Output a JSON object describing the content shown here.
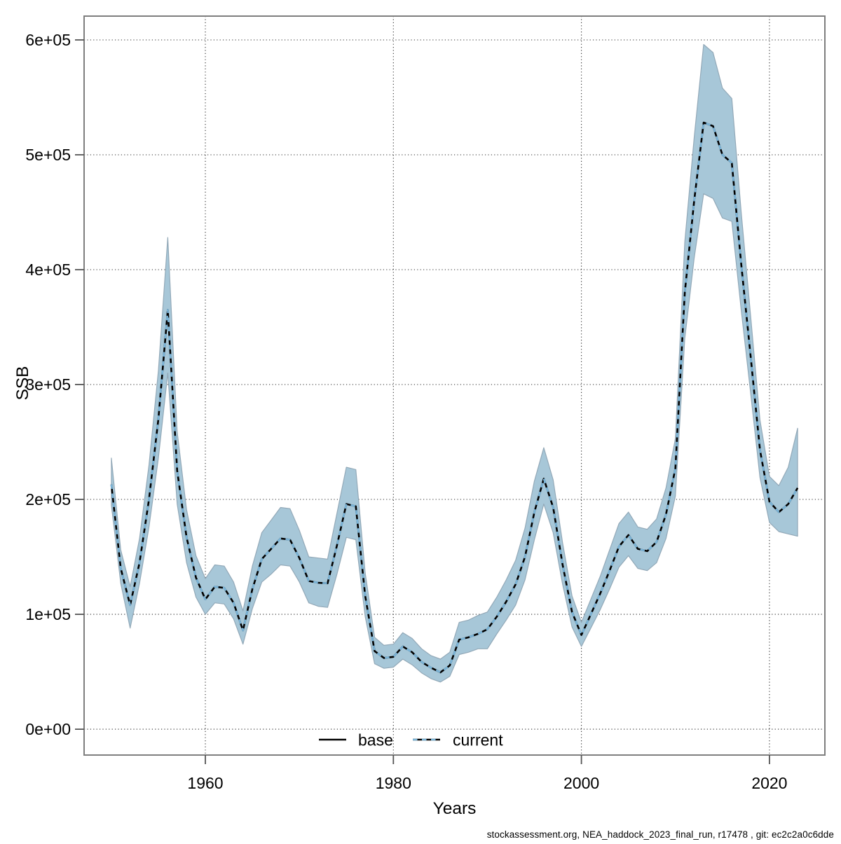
{
  "footer": "stockassessment.org, NEA_haddock_2023_final_run, r17478 , git: ec2c2a0c6dde",
  "chart_data": {
    "type": "line",
    "title": "",
    "xlabel": "Years",
    "ylabel": "SSB",
    "grid": true,
    "xlim": [
      1947.1,
      2025.9
    ],
    "ylim": [
      -22500,
      620700
    ],
    "x_ticks": [
      1960,
      1980,
      2000,
      2020
    ],
    "y_ticks": [
      {
        "value": 0,
        "label": "0e+00"
      },
      {
        "value": 100000,
        "label": "1e+05"
      },
      {
        "value": 200000,
        "label": "2e+05"
      },
      {
        "value": 300000,
        "label": "3e+05"
      },
      {
        "value": 400000,
        "label": "4e+05"
      },
      {
        "value": 500000,
        "label": "5e+05"
      },
      {
        "value": 600000,
        "label": "6e+05"
      }
    ],
    "legend": {
      "position": "bottom-center",
      "items": [
        {
          "label": "base",
          "style": "solid",
          "color": "#000000"
        },
        {
          "label": "current",
          "style": "dashed",
          "color": "#7AB4D8"
        }
      ]
    },
    "colors": {
      "ribbon_fill": "#A7C7D8",
      "ribbon_edge": "#93A9B8",
      "base_line": "#000000",
      "current_line": "#7AB4D8",
      "grid_line": "#2b2b2b",
      "frame": "#7e7e7e",
      "tick": "#555555"
    },
    "note": "base line coincides with current line (blue dashes drawn over solid black)",
    "years": [
      1950,
      1951,
      1952,
      1953,
      1954,
      1955,
      1956,
      1957,
      1958,
      1959,
      1960,
      1961,
      1962,
      1963,
      1964,
      1965,
      1966,
      1967,
      1968,
      1969,
      1970,
      1971,
      1972,
      1973,
      1974,
      1975,
      1976,
      1977,
      1978,
      1979,
      1980,
      1981,
      1982,
      1983,
      1984,
      1985,
      1986,
      1987,
      1988,
      1989,
      1990,
      1991,
      1992,
      1993,
      1994,
      1995,
      1996,
      1997,
      1998,
      1999,
      2000,
      2001,
      2002,
      2003,
      2004,
      2005,
      2006,
      2007,
      2008,
      2009,
      2010,
      2011,
      2012,
      2013,
      2014,
      2015,
      2016,
      2017,
      2018,
      2019,
      2020,
      2021,
      2022,
      2023
    ],
    "series": [
      {
        "name": "current (SSB, tonnes)",
        "values": [
          213000,
          140000,
          108000,
          145000,
          200000,
          270000,
          365000,
          225000,
          167000,
          132000,
          113000,
          124000,
          123000,
          110000,
          86000,
          122000,
          148000,
          157000,
          166000,
          165000,
          149000,
          129000,
          127500,
          127000,
          160000,
          196000,
          194000,
          116000,
          68000,
          62000,
          63000,
          72000,
          67000,
          58500,
          53500,
          49500,
          55500,
          78000,
          80000,
          83000,
          87000,
          98000,
          111000,
          126000,
          150000,
          189000,
          218000,
          193000,
          143000,
          102000,
          82000,
          100000,
          118000,
          138000,
          159000,
          169000,
          157000,
          155000,
          163000,
          187000,
          227000,
          380000,
          460000,
          528000,
          525000,
          500000,
          493000,
          405000,
          325000,
          243000,
          198000,
          189000,
          196000,
          210000
        ]
      }
    ],
    "ribbon": {
      "lo": [
        195000,
        127000,
        88000,
        127000,
        176000,
        236000,
        310000,
        196000,
        145000,
        115000,
        100000,
        110000,
        109000,
        96000,
        74000,
        105000,
        128000,
        135000,
        143000,
        142000,
        128000,
        110000,
        107000,
        106000,
        135000,
        167000,
        165000,
        98000,
        57000,
        53000,
        54000,
        61000,
        56000,
        49000,
        44000,
        41000,
        46000,
        65000,
        67000,
        70000,
        70000,
        83000,
        95000,
        108000,
        130000,
        165000,
        196000,
        171000,
        126000,
        89000,
        72000,
        88000,
        104000,
        122000,
        141000,
        151000,
        140000,
        138000,
        145000,
        166000,
        203000,
        340000,
        410000,
        466000,
        462000,
        445000,
        442000,
        365000,
        293000,
        219000,
        180000,
        172000,
        170000,
        168000
      ],
      "hi": [
        236000,
        156000,
        124000,
        166000,
        230000,
        312000,
        428000,
        259000,
        191000,
        151000,
        131000,
        143000,
        142000,
        128000,
        103000,
        142000,
        171000,
        182000,
        193000,
        192000,
        173000,
        150000,
        149000,
        148000,
        188000,
        228000,
        226000,
        136000,
        80000,
        73000,
        74000,
        84000,
        79000,
        70000,
        64000,
        61000,
        67000,
        93000,
        95000,
        99000,
        102000,
        115000,
        130000,
        147000,
        175000,
        216000,
        245000,
        217000,
        162000,
        116000,
        93000,
        113000,
        133000,
        156000,
        179000,
        189000,
        176000,
        174000,
        183000,
        210000,
        253000,
        424000,
        515000,
        596000,
        589000,
        558000,
        549000,
        450000,
        360000,
        269000,
        220000,
        212000,
        228000,
        262000
      ]
    }
  }
}
